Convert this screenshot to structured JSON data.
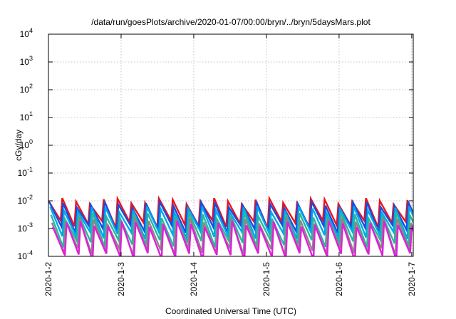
{
  "chart_data": {
    "type": "line",
    "title": "/data/run/goesPlots/archive/2020-01-07/00:00/bryn/../bryn/5daysMars.plot",
    "xlabel": "Coordinated Universal Time (UTC)",
    "ylabel": "cGy/day",
    "y_scale": "log",
    "ylim": [
      0.0001,
      10000
    ],
    "xlim": [
      "2020-01-02T00:00",
      "2020-01-07T00:30"
    ],
    "x_ticks": [
      "2020-1-2",
      "2020-1-3",
      "2020-1-4",
      "2020-1-5",
      "2020-1-6",
      "2020-1-7"
    ],
    "y_ticks": [
      {
        "base": "10",
        "exp": "-4"
      },
      {
        "base": "10",
        "exp": "-3"
      },
      {
        "base": "10",
        "exp": "-2"
      },
      {
        "base": "10",
        "exp": "-1"
      },
      {
        "base": "10",
        "exp": "0"
      },
      {
        "base": "10",
        "exp": "1"
      },
      {
        "base": "10",
        "exp": "2"
      },
      {
        "base": "10",
        "exp": "3"
      },
      {
        "base": "10",
        "exp": "4"
      }
    ],
    "grid": true,
    "pattern": "sawtooth, period about 0.19 day, peaks near 1e-2, troughs near 1e-4",
    "series": [
      {
        "color": "#e8141e",
        "peak": 0.01,
        "trough": 0.0015
      },
      {
        "color": "#1c4be0",
        "peak": 0.0075,
        "trough": 0.001
      },
      {
        "color": "#00a8e8",
        "peak": 0.005,
        "trough": 0.0006
      },
      {
        "color": "#2ab7a0",
        "peak": 0.003,
        "trough": 0.0003
      },
      {
        "color": "#888888",
        "peak": 0.002,
        "trough": 0.00015
      },
      {
        "color": "#e020d8",
        "peak": 0.0015,
        "trough": 0.0001
      }
    ]
  }
}
